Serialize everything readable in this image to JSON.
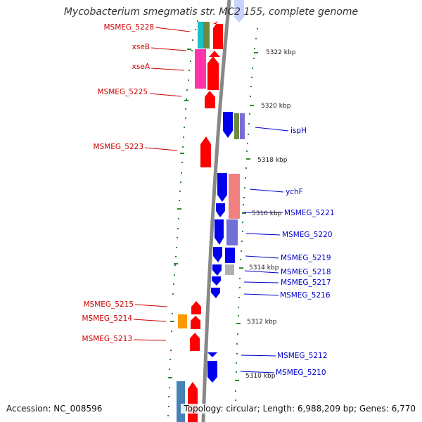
{
  "title": "Mycobacterium smegmatis str. MC2 155, complete genome",
  "accession": "Accession: NC_008596",
  "summary": "Topology: circular; Length: 6,988,209 bp; Genes: 6,770",
  "colors": {
    "forward_feature": "#ff0000",
    "reverse_feature": "#0000ff",
    "backbone": "#808080",
    "ticks": "#008000",
    "left_label": "#cc0000",
    "right_label": "#0000cc"
  },
  "scale_labels": [
    "5322 kbp",
    "5320 kbp",
    "5318 kbp",
    "5316 kbp",
    "5314 kbp",
    "5312 kbp",
    "5310 kbp"
  ],
  "left_gene_labels": [
    "MSMEG_5228",
    "xseB",
    "xseA",
    "MSMEG_5225",
    "MSMEG_5223",
    "MSMEG_5215",
    "MSMEG_5214",
    "MSMEG_5213"
  ],
  "right_gene_labels": [
    "ispH",
    "ychF",
    "MSMEG_5221",
    "MSMEG_5220",
    "MSMEG_5219",
    "MSMEG_5218",
    "MSMEG_5217",
    "MSMEG_5216",
    "MSMEG_5212",
    "MSMEG_5210"
  ]
}
